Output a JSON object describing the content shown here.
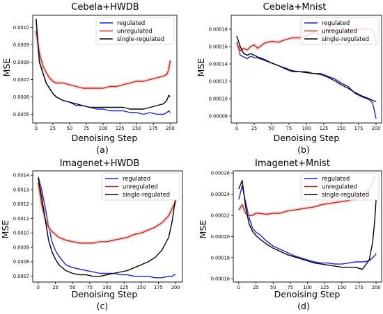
{
  "chart_data": [
    {
      "type": "line",
      "title": "Cebela+HWDB",
      "caption": "(a)",
      "xlabel": "Denoising Step",
      "ylabel": "MSE",
      "xlim": [
        -5,
        210
      ],
      "ylim": [
        0.00045,
        0.00107
      ],
      "xticks": [
        0,
        25,
        50,
        75,
        100,
        125,
        150,
        175,
        200
      ],
      "yticks": [
        0.0005,
        0.0006,
        0.0007,
        0.0008,
        0.0009,
        0.001
      ],
      "ytick_labels": [
        "0.0005",
        "0.0006",
        "0.0007",
        "0.0008",
        "0.0009",
        "0.0010"
      ],
      "legend": "top-right",
      "x": [
        0,
        5,
        10,
        15,
        20,
        25,
        30,
        40,
        50,
        60,
        70,
        80,
        90,
        100,
        110,
        120,
        130,
        140,
        150,
        160,
        170,
        180,
        190,
        195,
        198,
        200
      ],
      "series": [
        {
          "name": "regulated",
          "color": "#1f1fd8",
          "values": [
            0.00105,
            0.0008,
            0.00074,
            0.00068,
            0.00065,
            0.00062,
            0.0006,
            0.00058,
            0.00057,
            0.00055,
            0.00055,
            0.00054,
            0.00053,
            0.00053,
            0.00052,
            0.00052,
            0.00052,
            0.00051,
            0.00051,
            0.0005,
            0.00051,
            0.0005,
            0.0005,
            0.00051,
            0.00052,
            0.00051
          ]
        },
        {
          "name": "unregulated",
          "color": "#c0281a",
          "values": [
            0.00098,
            0.00085,
            0.00078,
            0.00074,
            0.00071,
            0.00069,
            0.00068,
            0.00068,
            0.00067,
            0.00066,
            0.00065,
            0.00065,
            0.00065,
            0.00065,
            0.00066,
            0.00066,
            0.00067,
            0.00068,
            0.00069,
            0.00069,
            0.0007,
            0.00071,
            0.00072,
            0.00073,
            0.00076,
            0.00081
          ]
        },
        {
          "name": "single-regulated",
          "color": "#000000",
          "values": [
            0.00105,
            0.0008,
            0.00074,
            0.00068,
            0.00065,
            0.00062,
            0.0006,
            0.00058,
            0.00057,
            0.00056,
            0.00055,
            0.00054,
            0.00054,
            0.00054,
            0.00054,
            0.00054,
            0.00054,
            0.00053,
            0.00053,
            0.00053,
            0.00054,
            0.00055,
            0.00056,
            0.00058,
            0.00061,
            0.0006
          ]
        }
      ]
    },
    {
      "type": "line",
      "title": "Cebela+Mnist",
      "caption": "(b)",
      "xlabel": "Denoising Step",
      "ylabel": "MSE",
      "xlim": [
        -8,
        208
      ],
      "ylim": [
        7.2e-05,
        0.000196
      ],
      "xticks": [
        0,
        25,
        50,
        75,
        100,
        125,
        150,
        175,
        200
      ],
      "yticks": [
        8e-05,
        0.0001,
        0.00012,
        0.00014,
        0.00016,
        0.00018
      ],
      "ytick_labels": [
        "0.00008",
        "0.00010",
        "0.00012",
        "0.00014",
        "0.00016",
        "0.00018"
      ],
      "legend": "top-right",
      "x": [
        0,
        5,
        10,
        15,
        20,
        25,
        30,
        40,
        50,
        60,
        70,
        80,
        90,
        100,
        110,
        120,
        130,
        140,
        150,
        160,
        170,
        180,
        190,
        195,
        198,
        200
      ],
      "series": [
        {
          "name": "regulated",
          "color": "#1f1fd8",
          "values": [
            0.000165,
            0.00015,
            0.000148,
            0.000146,
            0.000149,
            0.000147,
            0.000147,
            0.000144,
            0.000141,
            0.000138,
            0.000134,
            0.000131,
            0.000131,
            0.000131,
            0.000129,
            0.000129,
            0.000126,
            0.000123,
            0.000118,
            0.000114,
            0.000106,
            0.000102,
            9.9e-05,
            9.5e-05,
            8.5e-05,
            7.7e-05
          ]
        },
        {
          "name": "unregulated",
          "color": "#c0281a",
          "values": [
            0.000165,
            0.000155,
            0.000158,
            0.000156,
            0.00016,
            0.000162,
            0.000158,
            0.000164,
            0.000166,
            0.000165,
            0.000168,
            0.00017,
            0.00017,
            0.000172,
            0.000176,
            0.000174,
            0.00018,
            0.000178,
            0.000176,
            0.000177,
            0.000179,
            0.00018,
            0.000181,
            0.000179,
            0.000175,
            0.000164
          ]
        },
        {
          "name": "single-regulated",
          "color": "#000000",
          "values": [
            0.000172,
            0.00016,
            0.000152,
            0.00015,
            0.000152,
            0.00015,
            0.000148,
            0.000145,
            0.000141,
            0.000138,
            0.000135,
            0.000132,
            0.000131,
            0.00013,
            0.000129,
            0.000128,
            0.000125,
            0.000121,
            0.000116,
            0.000112,
            0.000107,
            0.000103,
            0.0001,
            9.8e-05,
            9.7e-05,
            9.7e-05
          ]
        }
      ]
    },
    {
      "type": "line",
      "title": "Imagenet+HWDB",
      "caption": "(c)",
      "xlabel": "Denoising Step",
      "ylabel": "MSE",
      "xlim": [
        -8,
        210
      ],
      "ylim": [
        0.00066,
        0.00143
      ],
      "xticks": [
        0,
        25,
        50,
        75,
        100,
        125,
        150,
        175,
        200
      ],
      "yticks": [
        0.0007,
        0.0008,
        0.0009,
        0.001,
        0.0011,
        0.0012,
        0.0013,
        0.0014
      ],
      "ytick_labels": [
        "0.0007",
        "0.0008",
        "0.0009",
        "0.0010",
        "0.0011",
        "0.0012",
        "0.0013",
        "0.0014"
      ],
      "legend": "top-right",
      "x": [
        0,
        5,
        10,
        15,
        20,
        25,
        30,
        40,
        50,
        60,
        70,
        80,
        90,
        100,
        110,
        120,
        130,
        140,
        150,
        160,
        170,
        180,
        190,
        195,
        198,
        200
      ],
      "series": [
        {
          "name": "regulated",
          "color": "#1f1fd8",
          "values": [
            0.00139,
            0.0013,
            0.00118,
            0.00105,
            0.00094,
            0.00088,
            0.00084,
            0.00078,
            0.00076,
            0.00075,
            0.00074,
            0.00073,
            0.00072,
            0.00072,
            0.00072,
            0.00071,
            0.00071,
            0.0007,
            0.0007,
            0.0007,
            0.00069,
            0.00069,
            0.0007,
            0.0007,
            0.00071,
            0.00071
          ]
        },
        {
          "name": "unregulated",
          "color": "#c0281a",
          "values": [
            0.00135,
            0.0012,
            0.0011,
            0.00104,
            0.00101,
            0.00099,
            0.00097,
            0.00095,
            0.00094,
            0.00093,
            0.00093,
            0.00093,
            0.00094,
            0.00094,
            0.00095,
            0.00096,
            0.00097,
            0.00099,
            0.001,
            0.00102,
            0.00104,
            0.00107,
            0.00112,
            0.00117,
            0.0012,
            0.00123
          ]
        },
        {
          "name": "single-regulated",
          "color": "#000000",
          "values": [
            0.00138,
            0.00125,
            0.0011,
            0.00095,
            0.00087,
            0.00082,
            0.00078,
            0.00074,
            0.00072,
            0.00071,
            0.00071,
            0.0007,
            0.0007,
            0.00071,
            0.00072,
            0.00073,
            0.00074,
            0.00076,
            0.00078,
            0.0008,
            0.00083,
            0.00088,
            0.00097,
            0.00108,
            0.00118,
            0.00123
          ]
        }
      ]
    },
    {
      "type": "line",
      "title": "Imagenet+Mnist",
      "caption": "(d)",
      "xlabel": "Denoising Step",
      "ylabel": "MSE",
      "xlim": [
        -8,
        208
      ],
      "ylim": [
        0.000157,
        0.000262
      ],
      "xticks": [
        0,
        25,
        50,
        75,
        100,
        125,
        150,
        175,
        200
      ],
      "yticks": [
        0.00016,
        0.00018,
        0.0002,
        0.00022,
        0.00024,
        0.00026
      ],
      "ytick_labels": [
        "0.00016",
        "0.00018",
        "0.00020",
        "0.00022",
        "0.00024",
        "0.00026"
      ],
      "legend": "top-right",
      "x": [
        0,
        5,
        10,
        15,
        20,
        25,
        30,
        40,
        50,
        60,
        70,
        80,
        90,
        100,
        110,
        120,
        130,
        140,
        150,
        160,
        170,
        180,
        190,
        195,
        198,
        200
      ],
      "series": [
        {
          "name": "regulated",
          "color": "#1f1fd8",
          "values": [
            0.000235,
            0.000248,
            0.000232,
            0.000218,
            0.000208,
            0.000204,
            0.000202,
            0.000196,
            0.000191,
            0.000188,
            0.000185,
            0.000182,
            0.00018,
            0.000178,
            0.000176,
            0.000175,
            0.000175,
            0.000174,
            0.000174,
            0.000175,
            0.000176,
            0.000176,
            0.000177,
            0.00018,
            0.000182,
            0.000184
          ]
        },
        {
          "name": "unregulated",
          "color": "#c0281a",
          "values": [
            0.000225,
            0.00023,
            0.000222,
            0.00022,
            0.00022,
            0.000222,
            0.000222,
            0.000221,
            0.000222,
            0.000222,
            0.000224,
            0.000225,
            0.000226,
            0.000227,
            0.000228,
            0.00023,
            0.000231,
            0.000232,
            0.000233,
            0.000234,
            0.000236,
            0.000239,
            0.000244,
            0.000251,
            0.000256,
            0.000258
          ]
        },
        {
          "name": "single-regulated",
          "color": "#000000",
          "values": [
            0.000245,
            0.000253,
            0.000228,
            0.000212,
            0.000205,
            0.000201,
            0.000198,
            0.000193,
            0.000189,
            0.000186,
            0.000183,
            0.000181,
            0.000179,
            0.000177,
            0.000175,
            0.000174,
            0.000173,
            0.000172,
            0.000171,
            0.000171,
            0.000171,
            0.000169,
            0.000178,
            0.000195,
            0.000215,
            0.000235
          ]
        }
      ]
    }
  ]
}
